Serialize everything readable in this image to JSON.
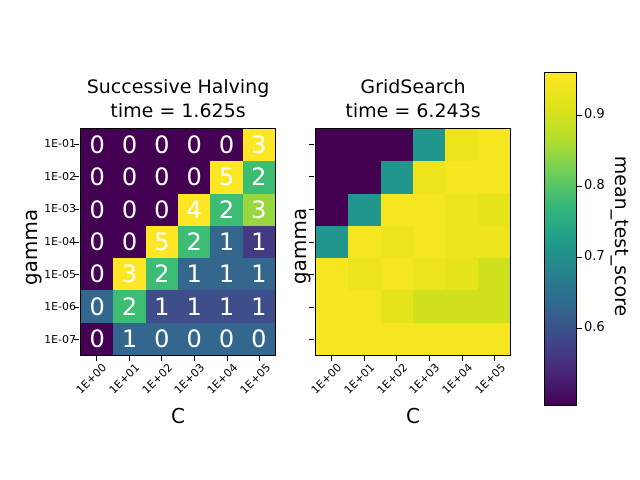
{
  "left_plot": {
    "title": "Successive Halving",
    "subtitle": "time = 1.625s",
    "xlabel": "C",
    "ylabel": "gamma",
    "x_tick_labels": [
      "1E+00",
      "1E+01",
      "1E+02",
      "1E+03",
      "1E+04",
      "1E+05"
    ],
    "y_tick_labels": [
      "1E-01",
      "1E-02",
      "1E-03",
      "1E-04",
      "1E-05",
      "1E-06",
      "1E-07"
    ],
    "cells": [
      [
        {
          "v": "0",
          "c": "#440154"
        },
        {
          "v": "0",
          "c": "#440154"
        },
        {
          "v": "0",
          "c": "#440154"
        },
        {
          "v": "0",
          "c": "#440154"
        },
        {
          "v": "0",
          "c": "#440154"
        },
        {
          "v": "3",
          "c": "#fde725"
        }
      ],
      [
        {
          "v": "0",
          "c": "#440154"
        },
        {
          "v": "0",
          "c": "#440154"
        },
        {
          "v": "0",
          "c": "#440154"
        },
        {
          "v": "0",
          "c": "#440154"
        },
        {
          "v": "5",
          "c": "#fde725"
        },
        {
          "v": "2",
          "c": "#3dbc74"
        }
      ],
      [
        {
          "v": "0",
          "c": "#440154"
        },
        {
          "v": "0",
          "c": "#440154"
        },
        {
          "v": "0",
          "c": "#440154"
        },
        {
          "v": "4",
          "c": "#fde725"
        },
        {
          "v": "2",
          "c": "#3dbc74"
        },
        {
          "v": "3",
          "c": "#98d83e"
        }
      ],
      [
        {
          "v": "0",
          "c": "#440154"
        },
        {
          "v": "0",
          "c": "#440154"
        },
        {
          "v": "5",
          "c": "#fde725"
        },
        {
          "v": "2",
          "c": "#3dbc74"
        },
        {
          "v": "1",
          "c": "#34678e"
        },
        {
          "v": "1",
          "c": "#443983"
        }
      ],
      [
        {
          "v": "0",
          "c": "#440154"
        },
        {
          "v": "3",
          "c": "#fde725"
        },
        {
          "v": "2",
          "c": "#3dbc74"
        },
        {
          "v": "1",
          "c": "#34678e"
        },
        {
          "v": "1",
          "c": "#34678e"
        },
        {
          "v": "1",
          "c": "#34678e"
        }
      ],
      [
        {
          "v": "0",
          "c": "#34678e"
        },
        {
          "v": "2",
          "c": "#3dbc74"
        },
        {
          "v": "1",
          "c": "#3d4e8a"
        },
        {
          "v": "1",
          "c": "#3d4e8a"
        },
        {
          "v": "1",
          "c": "#3d4e8a"
        },
        {
          "v": "1",
          "c": "#3d4e8a"
        }
      ],
      [
        {
          "v": "0",
          "c": "#440154"
        },
        {
          "v": "1",
          "c": "#34678e"
        },
        {
          "v": "0",
          "c": "#34678e"
        },
        {
          "v": "0",
          "c": "#34678e"
        },
        {
          "v": "0",
          "c": "#34678e"
        },
        {
          "v": "0",
          "c": "#34678e"
        }
      ]
    ]
  },
  "right_plot": {
    "title": "GridSearch",
    "subtitle": "time = 6.243s",
    "xlabel": "C",
    "ylabel": "gamma",
    "x_tick_labels": [
      "1E+00",
      "1E+01",
      "1E+02",
      "1E+03",
      "1E+04",
      "1E+05"
    ],
    "cells": [
      [
        "#440154",
        "#440154",
        "#440154",
        "#21968c",
        "#eee41c",
        "#f5e61f"
      ],
      [
        "#440154",
        "#440154",
        "#21968c",
        "#eee41c",
        "#f5e61f",
        "#f5e61f"
      ],
      [
        "#440154",
        "#21968c",
        "#f5e61f",
        "#f5e61f",
        "#eee41c",
        "#e4e419"
      ],
      [
        "#21968c",
        "#f5e61f",
        "#eee41c",
        "#f5e61f",
        "#eee41c",
        "#eee41c"
      ],
      [
        "#f5e61f",
        "#eee41c",
        "#f5e61f",
        "#eee41c",
        "#e4e419",
        "#cfe11c"
      ],
      [
        "#f5e61f",
        "#f5e61f",
        "#e4e419",
        "#cfe11c",
        "#cfe11c",
        "#cfe11c"
      ],
      [
        "#f5e61f",
        "#f5e61f",
        "#f5e61f",
        "#f5e61f",
        "#f5e61f",
        "#f5e61f"
      ]
    ]
  },
  "colorbar": {
    "label": "mean_test_score",
    "tick_labels": [
      "0.9",
      "0.8",
      "0.7",
      "0.6"
    ],
    "gradient_stops_bottom_to_top": [
      "#440154",
      "#482878",
      "#3e4989",
      "#31688e",
      "#26828e",
      "#1f9e89",
      "#35b779",
      "#6ece58",
      "#b5de2b",
      "#dfe318",
      "#fde725"
    ]
  },
  "chart_data": [
    {
      "type": "heatmap",
      "title": "Successive Halving",
      "subtitle": "time = 1.625s",
      "xlabel": "C",
      "ylabel": "gamma",
      "x": [
        "1E+00",
        "1E+01",
        "1E+02",
        "1E+03",
        "1E+04",
        "1E+05"
      ],
      "y": [
        "1E-01",
        "1E-02",
        "1E-03",
        "1E-04",
        "1E-05",
        "1E-06",
        "1E-07"
      ],
      "cell_annotations": [
        [
          0,
          0,
          0,
          0,
          0,
          3
        ],
        [
          0,
          0,
          0,
          0,
          5,
          2
        ],
        [
          0,
          0,
          0,
          4,
          2,
          3
        ],
        [
          0,
          0,
          5,
          2,
          1,
          1
        ],
        [
          0,
          3,
          2,
          1,
          1,
          1
        ],
        [
          0,
          2,
          1,
          1,
          1,
          1
        ],
        [
          0,
          1,
          0,
          0,
          0,
          0
        ]
      ],
      "values_mean_test_score_estimated": [
        [
          0.5,
          0.5,
          0.5,
          0.5,
          0.5,
          0.95
        ],
        [
          0.5,
          0.5,
          0.5,
          0.5,
          0.95,
          0.8
        ],
        [
          0.5,
          0.5,
          0.5,
          0.95,
          0.8,
          0.87
        ],
        [
          0.5,
          0.5,
          0.95,
          0.8,
          0.67,
          0.6
        ],
        [
          0.5,
          0.95,
          0.8,
          0.67,
          0.67,
          0.67
        ],
        [
          0.67,
          0.8,
          0.62,
          0.62,
          0.62,
          0.62
        ],
        [
          0.5,
          0.67,
          0.67,
          0.67,
          0.67,
          0.67
        ]
      ],
      "colormap": "viridis",
      "colorbar_label": "mean_test_score",
      "colorbar_ticks": [
        0.9,
        0.8,
        0.7,
        0.6
      ],
      "colorbar_range_estimated": [
        0.5,
        0.96
      ]
    },
    {
      "type": "heatmap",
      "title": "GridSearch",
      "subtitle": "time = 6.243s",
      "xlabel": "C",
      "ylabel": "gamma",
      "x": [
        "1E+00",
        "1E+01",
        "1E+02",
        "1E+03",
        "1E+04",
        "1E+05"
      ],
      "y": [
        "1E-01",
        "1E-02",
        "1E-03",
        "1E-04",
        "1E-05",
        "1E-06",
        "1E-07"
      ],
      "values_mean_test_score_estimated": [
        [
          0.5,
          0.5,
          0.5,
          0.78,
          0.94,
          0.95
        ],
        [
          0.5,
          0.5,
          0.78,
          0.94,
          0.95,
          0.95
        ],
        [
          0.5,
          0.78,
          0.95,
          0.95,
          0.94,
          0.93
        ],
        [
          0.78,
          0.95,
          0.94,
          0.95,
          0.94,
          0.94
        ],
        [
          0.95,
          0.94,
          0.95,
          0.94,
          0.93,
          0.91
        ],
        [
          0.95,
          0.95,
          0.93,
          0.91,
          0.91,
          0.91
        ],
        [
          0.95,
          0.95,
          0.95,
          0.95,
          0.95,
          0.95
        ]
      ],
      "colormap": "viridis",
      "colorbar_label": "mean_test_score",
      "colorbar_ticks": [
        0.9,
        0.8,
        0.7,
        0.6
      ],
      "colorbar_range_estimated": [
        0.5,
        0.96
      ]
    }
  ]
}
